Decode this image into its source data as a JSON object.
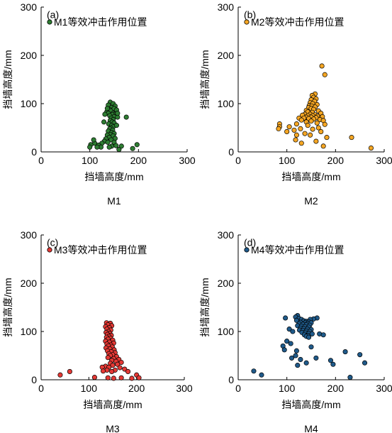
{
  "chart_data": [
    {
      "type": "scatter",
      "panel_label": "(a)",
      "caption": "M1",
      "xlabel": "挡墙高度/mm",
      "ylabel": "挡墙高度/mm",
      "xlim": [
        0,
        300
      ],
      "ylim": [
        0,
        300
      ],
      "xticks": [
        "0",
        "100",
        "200",
        "300"
      ],
      "yticks": [
        "0",
        "100",
        "200",
        "300"
      ],
      "legend_position": "top-left",
      "color": "#2e7d32",
      "series": [
        {
          "name": "M1等效冲击作用位置",
          "points": [
            [
              142,
              103
            ],
            [
              148,
              100
            ],
            [
              138,
              97
            ],
            [
              152,
              95
            ],
            [
              145,
              92
            ],
            [
              150,
              90
            ],
            [
              140,
              88
            ],
            [
              155,
              87
            ],
            [
              143,
              85
            ],
            [
              135,
              83
            ],
            [
              148,
              80
            ],
            [
              152,
              78
            ],
            [
              138,
              80
            ],
            [
              146,
              77
            ],
            [
              141,
              75
            ],
            [
              150,
              73
            ],
            [
              157,
              72
            ],
            [
              144,
              70
            ],
            [
              148,
              67
            ],
            [
              142,
              65
            ],
            [
              146,
              62
            ],
            [
              150,
              60
            ],
            [
              139,
              58
            ],
            [
              145,
              55
            ],
            [
              148,
              52
            ],
            [
              143,
              50
            ],
            [
              141,
              48
            ],
            [
              147,
              45
            ],
            [
              138,
              43
            ],
            [
              145,
              40
            ],
            [
              150,
              38
            ],
            [
              142,
              36
            ],
            [
              136,
              35
            ],
            [
              148,
              33
            ],
            [
              140,
              30
            ],
            [
              152,
              28
            ],
            [
              133,
              27
            ],
            [
              144,
              25
            ],
            [
              130,
              22
            ],
            [
              150,
              20
            ],
            [
              137,
              20
            ],
            [
              125,
              18
            ],
            [
              110,
              18
            ],
            [
              102,
              15
            ],
            [
              118,
              14
            ],
            [
              154,
              13
            ],
            [
              197,
              15
            ],
            [
              165,
              12
            ],
            [
              145,
              12
            ],
            [
              123,
              10
            ],
            [
              115,
              10
            ],
            [
              100,
              10
            ],
            [
              188,
              7
            ],
            [
              160,
              5
            ],
            [
              175,
              72
            ],
            [
              136,
              90
            ],
            [
              157,
              80
            ],
            [
              131,
              78
            ],
            [
              155,
              55
            ],
            [
              129,
              62
            ],
            [
              140,
              10
            ],
            [
              108,
              25
            ]
          ]
        }
      ]
    },
    {
      "type": "scatter",
      "panel_label": "(b)",
      "caption": "M2",
      "xlabel": "挡墙高度/mm",
      "ylabel": "挡墙高度/mm",
      "xlim": [
        0,
        300
      ],
      "ylim": [
        0,
        300
      ],
      "xticks": [
        "0",
        "100",
        "200",
        "300"
      ],
      "yticks": [
        "0",
        "100",
        "200",
        "300"
      ],
      "legend_position": "top-left",
      "color": "#f5a623",
      "series": [
        {
          "name": "M2等效冲击作用位置",
          "points": [
            [
              172,
              178
            ],
            [
              178,
              160
            ],
            [
              158,
              120
            ],
            [
              152,
              117
            ],
            [
              155,
              113
            ],
            [
              160,
              110
            ],
            [
              150,
              108
            ],
            [
              157,
              105
            ],
            [
              148,
              102
            ],
            [
              153,
              100
            ],
            [
              162,
              98
            ],
            [
              146,
              96
            ],
            [
              151,
              95
            ],
            [
              158,
              93
            ],
            [
              145,
              92
            ],
            [
              150,
              90
            ],
            [
              155,
              88
            ],
            [
              140,
              86
            ],
            [
              165,
              85
            ],
            [
              143,
              83
            ],
            [
              152,
              82
            ],
            [
              170,
              80
            ],
            [
              137,
              78
            ],
            [
              148,
              78
            ],
            [
              158,
              77
            ],
            [
              132,
              76
            ],
            [
              143,
              75
            ],
            [
              153,
              75
            ],
            [
              163,
              74
            ],
            [
              173,
              73
            ],
            [
              140,
              72
            ],
            [
              150,
              72
            ],
            [
              160,
              71
            ],
            [
              125,
              70
            ],
            [
              135,
              70
            ],
            [
              145,
              69
            ],
            [
              155,
              68
            ],
            [
              168,
              67
            ],
            [
              130,
              66
            ],
            [
              175,
              65
            ],
            [
              150,
              64
            ],
            [
              140,
              62
            ],
            [
              162,
              60
            ],
            [
              120,
              58
            ],
            [
              178,
              57
            ],
            [
              143,
              55
            ],
            [
              85,
              58
            ],
            [
              85,
              52
            ],
            [
              83,
              48
            ],
            [
              105,
              52
            ],
            [
              115,
              45
            ],
            [
              128,
              48
            ],
            [
              153,
              47
            ],
            [
              165,
              50
            ],
            [
              100,
              42
            ],
            [
              137,
              38
            ],
            [
              120,
              35
            ],
            [
              148,
              35
            ],
            [
              170,
              42
            ],
            [
              182,
              30
            ],
            [
              233,
              30
            ],
            [
              118,
              25
            ],
            [
              160,
              22
            ],
            [
              130,
              18
            ],
            [
              175,
              12
            ],
            [
              273,
              8
            ]
          ]
        }
      ]
    },
    {
      "type": "scatter",
      "panel_label": "(c)",
      "caption": "M3",
      "xlabel": "挡墙高度/mm",
      "ylabel": "挡墙高度/mm",
      "xlim": [
        0,
        300
      ],
      "ylim": [
        0,
        300
      ],
      "xticks": [
        "0",
        "100",
        "200",
        "300"
      ],
      "yticks": [
        "0",
        "100",
        "200",
        "300"
      ],
      "legend_position": "top-left",
      "color": "#e53935",
      "series": [
        {
          "name": "M3等效冲击作用位置",
          "points": [
            [
              137,
              118
            ],
            [
              145,
              117
            ],
            [
              140,
              114
            ],
            [
              148,
              112
            ],
            [
              135,
              110
            ],
            [
              143,
              108
            ],
            [
              138,
              105
            ],
            [
              146,
              103
            ],
            [
              141,
              100
            ],
            [
              136,
              98
            ],
            [
              144,
              96
            ],
            [
              139,
              94
            ],
            [
              147,
              92
            ],
            [
              142,
              90
            ],
            [
              137,
              88
            ],
            [
              145,
              86
            ],
            [
              140,
              84
            ],
            [
              150,
              82
            ],
            [
              135,
              80
            ],
            [
              143,
              78
            ],
            [
              152,
              76
            ],
            [
              138,
              74
            ],
            [
              146,
              72
            ],
            [
              141,
              70
            ],
            [
              149,
              68
            ],
            [
              136,
              66
            ],
            [
              144,
              64
            ],
            [
              153,
              62
            ],
            [
              139,
              60
            ],
            [
              147,
              58
            ],
            [
              155,
              56
            ],
            [
              142,
              54
            ],
            [
              150,
              52
            ],
            [
              145,
              50
            ],
            [
              158,
              48
            ],
            [
              140,
              46
            ],
            [
              152,
              44
            ],
            [
              163,
              42
            ],
            [
              148,
              40
            ],
            [
              157,
              38
            ],
            [
              168,
              36
            ],
            [
              145,
              34
            ],
            [
              160,
              32
            ],
            [
              150,
              30
            ],
            [
              135,
              28
            ],
            [
              128,
              26
            ],
            [
              142,
              26
            ],
            [
              165,
              25
            ],
            [
              175,
              22
            ],
            [
              155,
              20
            ],
            [
              138,
              20
            ],
            [
              130,
              18
            ],
            [
              148,
              17
            ],
            [
              60,
              17
            ],
            [
              182,
              17
            ],
            [
              40,
              10
            ],
            [
              200,
              10
            ],
            [
              112,
              5
            ],
            [
              140,
              4
            ],
            [
              168,
              4
            ],
            [
              190,
              3
            ],
            [
              205,
              4
            ],
            [
              152,
              3
            ]
          ]
        }
      ]
    },
    {
      "type": "scatter",
      "panel_label": "(d)",
      "caption": "M4",
      "xlabel": "挡墙高度/mm",
      "ylabel": "挡墙高度/mm",
      "xlim": [
        0,
        300
      ],
      "ylim": [
        0,
        300
      ],
      "xticks": [
        "0",
        "100",
        "200",
        "300"
      ],
      "yticks": [
        "0",
        "100",
        "200",
        "300"
      ],
      "legend_position": "top-left",
      "color": "#1f5a8a",
      "series": [
        {
          "name": "M4等效冲击作用位置",
          "points": [
            [
              122,
              133
            ],
            [
              118,
              130
            ],
            [
              162,
              128
            ],
            [
              155,
              126
            ],
            [
              148,
              125
            ],
            [
              97,
              128
            ],
            [
              125,
              127
            ],
            [
              130,
              125
            ],
            [
              120,
              123
            ],
            [
              135,
              122
            ],
            [
              140,
              121
            ],
            [
              145,
              120
            ],
            [
              128,
              119
            ],
            [
              138,
              118
            ],
            [
              143,
              117
            ],
            [
              150,
              118
            ],
            [
              125,
              116
            ],
            [
              133,
              115
            ],
            [
              140,
              114
            ],
            [
              147,
              113
            ],
            [
              122,
              112
            ],
            [
              130,
              111
            ],
            [
              137,
              110
            ],
            [
              145,
              109
            ],
            [
              128,
              107
            ],
            [
              135,
              106
            ],
            [
              142,
              105
            ],
            [
              150,
              104
            ],
            [
              126,
              103
            ],
            [
              133,
              102
            ],
            [
              140,
              101
            ],
            [
              147,
              100
            ],
            [
              131,
              98
            ],
            [
              138,
              97
            ],
            [
              145,
              96
            ],
            [
              152,
              95
            ],
            [
              136,
              93
            ],
            [
              143,
              92
            ],
            [
              167,
              95
            ],
            [
              175,
              93
            ],
            [
              105,
              105
            ],
            [
              112,
              100
            ],
            [
              140,
              90
            ],
            [
              145,
              88
            ],
            [
              100,
              80
            ],
            [
              108,
              75
            ],
            [
              92,
              70
            ],
            [
              150,
              68
            ],
            [
              95,
              62
            ],
            [
              120,
              60
            ],
            [
              220,
              58
            ],
            [
              118,
              50
            ],
            [
              250,
              52
            ],
            [
              110,
              45
            ],
            [
              128,
              42
            ],
            [
              160,
              45
            ],
            [
              190,
              40
            ],
            [
              140,
              35
            ],
            [
              195,
              32
            ],
            [
              122,
              30
            ],
            [
              260,
              35
            ],
            [
              32,
              18
            ],
            [
              48,
              10
            ],
            [
              230,
              5
            ]
          ]
        }
      ]
    }
  ]
}
